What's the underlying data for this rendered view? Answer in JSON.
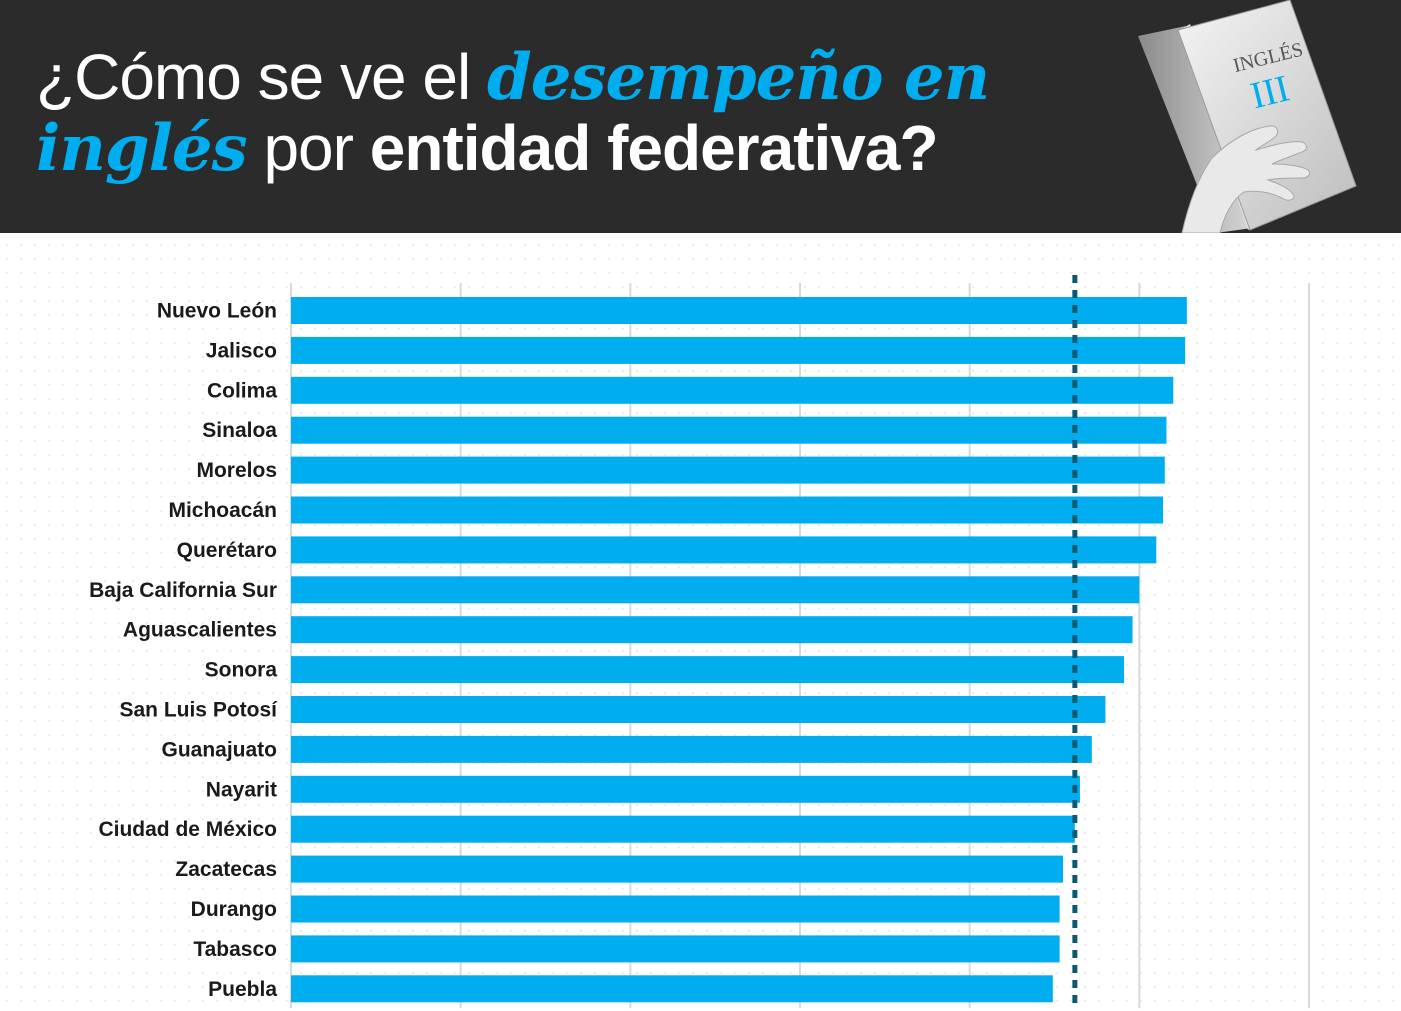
{
  "title": {
    "line1_pre": "¿Cómo se ve el ",
    "line1_highlight": "desempeño en",
    "line2_highlight": "inglés",
    "line2_mid": " por ",
    "line2_strong": "entidad federativa?"
  },
  "book": {
    "line1": "INGLÉS",
    "line2": "III"
  },
  "colors": {
    "header_bg": "#2b2b2b",
    "accent": "#00aeef",
    "bar": "#00aeef",
    "reference_line": "#0b5a73",
    "label": "#1a1a1a"
  },
  "chart_data": {
    "type": "bar",
    "orientation": "horizontal",
    "categories": [
      "Nuevo León",
      "Jalisco",
      "Colima",
      "Sinaloa",
      "Morelos",
      "Michoacán",
      "Querétaro",
      "Baja California Sur",
      "Aguascalientes",
      "Sonora",
      "San Luis Potosí",
      "Guanajuato",
      "Nayarit",
      "Ciudad de México",
      "Zacatecas",
      "Durango",
      "Tabasco",
      "Puebla"
    ],
    "values": [
      5.28,
      5.27,
      5.2,
      5.16,
      5.15,
      5.14,
      5.1,
      5.0,
      4.96,
      4.91,
      4.8,
      4.72,
      4.65,
      4.62,
      4.55,
      4.53,
      4.53,
      4.49
    ],
    "xlim": [
      0,
      6
    ],
    "reference_value": 4.62,
    "grid": true,
    "show_tick_labels": false
  }
}
